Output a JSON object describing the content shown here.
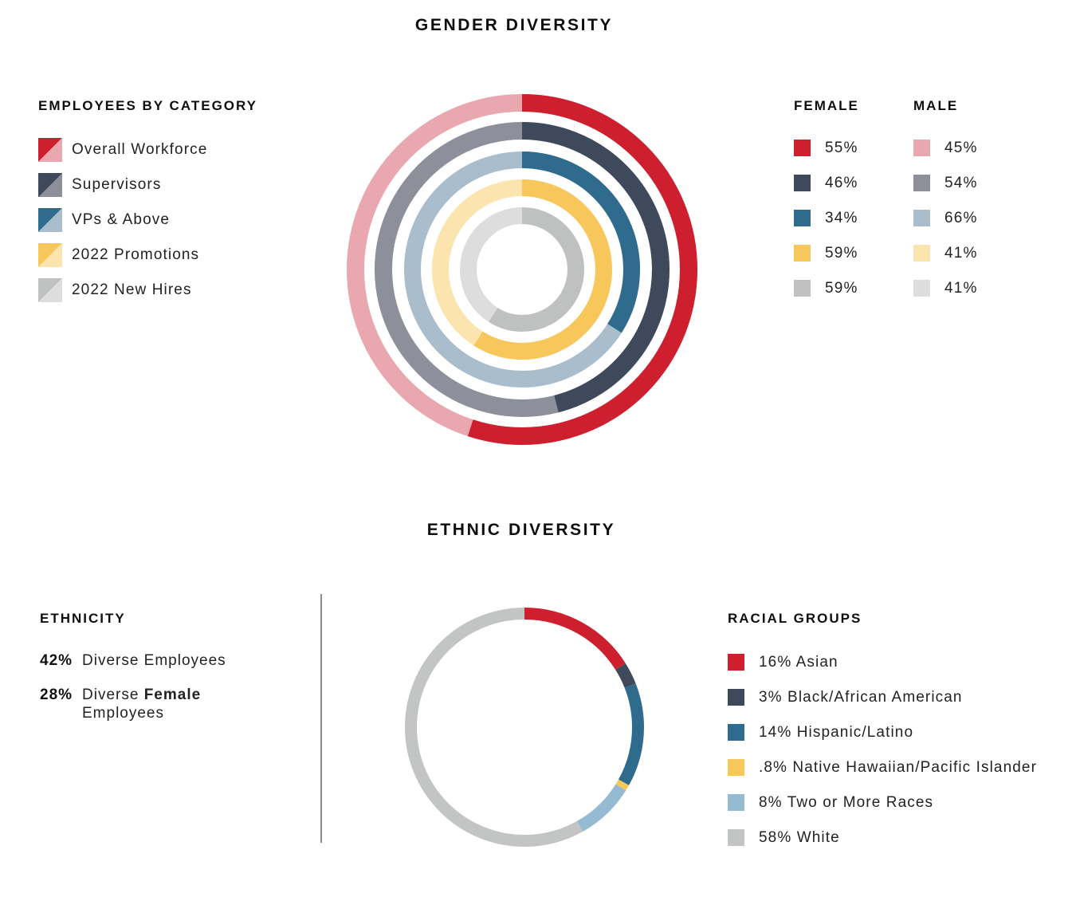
{
  "gender_section": {
    "title": "GENDER DIVERSITY",
    "legend_title": "EMPLOYEES BY CATEGORY",
    "female_header": "FEMALE",
    "male_header": "MALE",
    "categories": [
      {
        "label": "Overall Workforce",
        "female_pct": "55%",
        "male_pct": "45%",
        "female_color": "#CE1F2F",
        "male_color": "#E9A7AF"
      },
      {
        "label": "Supervisors",
        "female_pct": "46%",
        "male_pct": "54%",
        "female_color": "#3E4A5C",
        "male_color": "#8D909B"
      },
      {
        "label": "VPs & Above",
        "female_pct": "34%",
        "male_pct": "66%",
        "female_color": "#2F6B8D",
        "male_color": "#A9BDCC"
      },
      {
        "label": "2022 Promotions",
        "female_pct": "59%",
        "male_pct": "41%",
        "female_color": "#F8C75C",
        "male_color": "#FBE4AE"
      },
      {
        "label": "2022 New Hires",
        "female_pct": "59%",
        "male_pct": "41%",
        "female_color": "#BFC1C1",
        "male_color": "#DCDDDC"
      }
    ]
  },
  "ethnic_section": {
    "title": "ETHNIC DIVERSITY",
    "ethnicity_heading": "ETHNICITY",
    "stats": [
      {
        "value": "42%",
        "segments": [
          {
            "text": "Diverse Employees",
            "bold": false,
            "break_before": false
          }
        ]
      },
      {
        "value": "28%",
        "segments": [
          {
            "text": "Diverse ",
            "bold": false,
            "break_before": false
          },
          {
            "text": "Female",
            "bold": true,
            "break_before": false
          },
          {
            "text": "Employees",
            "bold": false,
            "break_before": true
          }
        ]
      }
    ],
    "racial_heading": "RACIAL GROUPS",
    "groups": [
      {
        "pct": "16%",
        "label": "Asian",
        "color": "#CE1F2F"
      },
      {
        "pct": "3%",
        "label": "Black/African American",
        "color": "#3E4A5C"
      },
      {
        "pct": "14%",
        "label": "Hispanic/Latino",
        "color": "#2F6B8D"
      },
      {
        "pct": ".8%",
        "label": "Native Hawaiian/Pacific Islander",
        "color": "#F8C75C"
      },
      {
        "pct": "8%",
        "label": "Two or More Races",
        "color": "#95BAD2"
      },
      {
        "pct": "58%",
        "label": "White",
        "color": "#C3C5C5"
      }
    ]
  },
  "chart_data": [
    {
      "type": "donut",
      "variant": "concentric-rings",
      "title": "Gender Diversity — Employees by Category",
      "categories": [
        "Overall Workforce",
        "Supervisors",
        "VPs & Above",
        "2022 Promotions",
        "2022 New Hires"
      ],
      "series": [
        {
          "name": "Female",
          "values": [
            55,
            46,
            34,
            59,
            59
          ],
          "colors": [
            "#CE1F2F",
            "#3E4A5C",
            "#2F6B8D",
            "#F8C75C",
            "#BFC1C1"
          ]
        },
        {
          "name": "Male",
          "values": [
            45,
            54,
            66,
            41,
            41
          ],
          "colors": [
            "#E9A7AF",
            "#8D909B",
            "#A9BDCC",
            "#FBE4AE",
            "#DCDDDC"
          ]
        }
      ],
      "start": "12-oclock",
      "direction": "clockwise",
      "ring_mid_radii": [
        209,
        174,
        137.5,
        102.5,
        67.5
      ],
      "ring_stroke_widths": [
        22,
        22,
        21,
        21,
        21
      ],
      "legend_position": "left-and-right",
      "grid": false
    },
    {
      "type": "donut",
      "variant": "single-ring",
      "title": "Ethnic Diversity — Racial Groups",
      "segments": [
        {
          "label": "Asian",
          "value": 16,
          "color": "#CE1F2F"
        },
        {
          "label": "Black/African American",
          "value": 3,
          "color": "#3E4A5C"
        },
        {
          "label": "Hispanic/Latino",
          "value": 14,
          "color": "#2F6B8D"
        },
        {
          "label": "Native Hawaiian/Pacific Islander",
          "value": 0.8,
          "color": "#F8C75C"
        },
        {
          "label": "Two or More Races",
          "value": 8,
          "color": "#95BAD2"
        },
        {
          "label": "White",
          "value": 58,
          "color": "#C3C5C5"
        }
      ],
      "start": "12-oclock",
      "direction": "clockwise",
      "radius": 142.5,
      "stroke_width": 15,
      "legend_position": "right",
      "grid": false
    }
  ]
}
